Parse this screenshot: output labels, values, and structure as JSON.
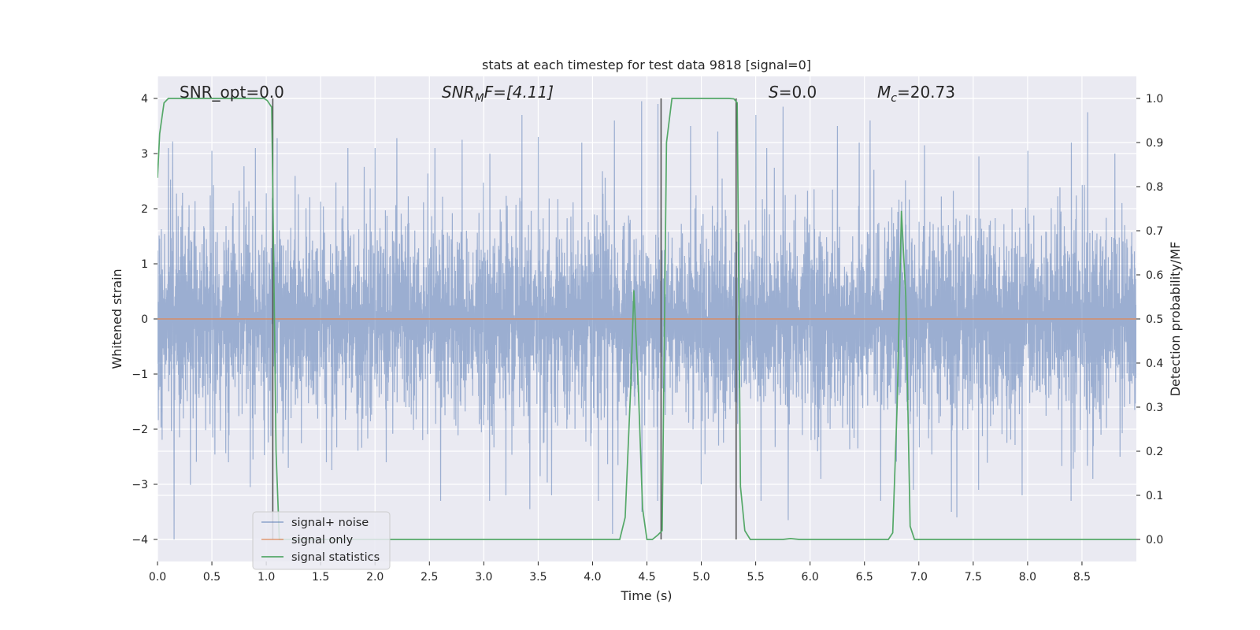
{
  "chart_data": {
    "type": "line",
    "title": "stats at each timestep for test data 9818 [signal=0]",
    "xlabel": "Time (s)",
    "ylabel_left": "Whitened strain",
    "ylabel_right": "Detection probability/MF",
    "xlim": [
      0,
      9.0
    ],
    "ylim_left": [
      -4.4,
      4.4
    ],
    "ylim_right": [
      -0.05,
      1.05
    ],
    "x_ticks": [
      0.0,
      0.5,
      1.0,
      1.5,
      2.0,
      2.5,
      3.0,
      3.5,
      4.0,
      4.5,
      5.0,
      5.5,
      6.0,
      6.5,
      7.0,
      7.5,
      8.0,
      8.5
    ],
    "x_tick_labels": [
      "0.0",
      "0.5",
      "1.0",
      "1.5",
      "2.0",
      "2.5",
      "3.0",
      "3.5",
      "4.0",
      "4.5",
      "5.0",
      "5.5",
      "6.0",
      "6.5",
      "7.0",
      "7.5",
      "8.0",
      "8.5"
    ],
    "y_left_ticks": [
      -4,
      -3,
      -2,
      -1,
      0,
      1,
      2,
      3,
      4
    ],
    "y_left_tick_labels": [
      "−4",
      "−3",
      "−2",
      "−1",
      "0",
      "1",
      "2",
      "3",
      "4"
    ],
    "y_right_ticks": [
      0.0,
      0.1,
      0.2,
      0.3,
      0.4,
      0.5,
      0.6,
      0.7,
      0.8,
      0.9,
      1.0
    ],
    "y_right_tick_labels": [
      "0.0",
      "0.1",
      "0.2",
      "0.3",
      "0.4",
      "0.5",
      "0.6",
      "0.7",
      "0.8",
      "0.9",
      "1.0"
    ],
    "grid": true,
    "legend_position": "lower-left",
    "legend": [
      {
        "label": "signal+ noise",
        "color": "#4c72b0"
      },
      {
        "label": "signal only",
        "color": "#dd8452"
      },
      {
        "label": "signal statistics",
        "color": "#55a868"
      }
    ],
    "annotations": {
      "snr_opt": "SNR_opt=0.0",
      "snr_mf_symbol": "SNR",
      "snr_mf_sub": "M",
      "snr_mf_rest": "F=[4.11]",
      "s_symbol": "S",
      "s_rest": "=0.0",
      "mc_symbol": "M",
      "mc_sub": "c",
      "mc_rest": "=20.73"
    },
    "noise_series": {
      "name": "signal+ noise",
      "color": "#4c72b0",
      "duration_s": 9.0,
      "typical_envelope": 1.6,
      "peaks": [
        {
          "t": 0.1,
          "v": 3.1
        },
        {
          "t": 0.14,
          "v": 3.22
        },
        {
          "t": 0.5,
          "v": 3.05
        },
        {
          "t": 0.9,
          "v": 3.1
        },
        {
          "t": 1.1,
          "v": 3.28
        },
        {
          "t": 1.75,
          "v": 3.1
        },
        {
          "t": 2.0,
          "v": 3.1
        },
        {
          "t": 2.2,
          "v": 3.28
        },
        {
          "t": 2.55,
          "v": 3.1
        },
        {
          "t": 2.8,
          "v": 3.25
        },
        {
          "t": 3.35,
          "v": 3.7
        },
        {
          "t": 3.5,
          "v": 3.3
        },
        {
          "t": 3.9,
          "v": 3.2
        },
        {
          "t": 4.2,
          "v": 3.6
        },
        {
          "t": 4.45,
          "v": 3.95
        },
        {
          "t": 4.6,
          "v": 3.9
        },
        {
          "t": 4.9,
          "v": 3.5
        },
        {
          "t": 5.15,
          "v": 3.4
        },
        {
          "t": 5.5,
          "v": 3.7
        },
        {
          "t": 5.6,
          "v": 3.1
        },
        {
          "t": 5.75,
          "v": 3.85
        },
        {
          "t": 6.25,
          "v": 3.5
        },
        {
          "t": 6.45,
          "v": 3.2
        },
        {
          "t": 6.55,
          "v": 3.6
        },
        {
          "t": 7.05,
          "v": 3.15
        },
        {
          "t": 7.55,
          "v": 2.95
        },
        {
          "t": 8.0,
          "v": 3.05
        },
        {
          "t": 8.4,
          "v": 3.2
        },
        {
          "t": 8.55,
          "v": 3.75
        },
        {
          "t": 8.8,
          "v": 3.0
        }
      ],
      "troughs": [
        {
          "t": 0.15,
          "v": -4.0
        },
        {
          "t": 0.65,
          "v": -2.6
        },
        {
          "t": 0.85,
          "v": -3.05
        },
        {
          "t": 1.2,
          "v": -2.7
        },
        {
          "t": 1.55,
          "v": -2.6
        },
        {
          "t": 2.1,
          "v": -2.6
        },
        {
          "t": 2.6,
          "v": -3.3
        },
        {
          "t": 3.05,
          "v": -3.3
        },
        {
          "t": 3.2,
          "v": -3.2
        },
        {
          "t": 3.42,
          "v": -3.45
        },
        {
          "t": 3.62,
          "v": -3.2
        },
        {
          "t": 4.05,
          "v": -3.3
        },
        {
          "t": 4.18,
          "v": -3.9
        },
        {
          "t": 4.45,
          "v": -3.5
        },
        {
          "t": 4.6,
          "v": -3.3
        },
        {
          "t": 5.0,
          "v": -3.0
        },
        {
          "t": 5.55,
          "v": -3.3
        },
        {
          "t": 5.8,
          "v": -3.65
        },
        {
          "t": 6.1,
          "v": -2.9
        },
        {
          "t": 6.65,
          "v": -3.3
        },
        {
          "t": 6.95,
          "v": -3.1
        },
        {
          "t": 7.3,
          "v": -3.5
        },
        {
          "t": 7.35,
          "v": -3.6
        },
        {
          "t": 7.55,
          "v": -3.1
        },
        {
          "t": 7.95,
          "v": -3.2
        },
        {
          "t": 8.4,
          "v": -3.3
        },
        {
          "t": 8.6,
          "v": -2.9
        },
        {
          "t": 8.85,
          "v": -2.5
        }
      ]
    },
    "signal_only": {
      "name": "signal only",
      "color": "#dd8452",
      "x": [
        0.0,
        9.0
      ],
      "y": [
        0.0,
        0.0
      ]
    },
    "statistics_series": {
      "name": "signal statistics",
      "color": "#55a868",
      "x": [
        0.0,
        0.02,
        0.06,
        0.1,
        0.2,
        0.5,
        0.8,
        0.98,
        1.01,
        1.05,
        1.07,
        1.09,
        1.12,
        1.15,
        1.2,
        1.5,
        2.0,
        3.0,
        4.0,
        4.25,
        4.3,
        4.35,
        4.38,
        4.42,
        4.46,
        4.5,
        4.55,
        4.6,
        4.64,
        4.68,
        4.73,
        5.0,
        5.25,
        5.3,
        5.33,
        5.36,
        5.4,
        5.45,
        5.5,
        5.75,
        5.82,
        5.9,
        6.5,
        6.72,
        6.76,
        6.8,
        6.84,
        6.88,
        6.92,
        6.96,
        7.5,
        8.0,
        9.0
      ],
      "y": [
        0.82,
        0.92,
        0.99,
        1.0,
        1.0,
        1.0,
        1.0,
        1.0,
        0.995,
        0.98,
        0.6,
        0.2,
        0.0,
        0.0,
        0.0,
        0.0,
        0.0,
        0.0,
        0.0,
        0.0,
        0.05,
        0.34,
        0.565,
        0.35,
        0.07,
        0.0,
        0.0,
        0.01,
        0.02,
        0.9,
        1.0,
        1.0,
        1.0,
        0.999,
        0.99,
        0.12,
        0.02,
        0.0,
        0.0,
        0.0,
        0.002,
        0.0,
        0.0,
        0.0,
        0.015,
        0.3,
        0.745,
        0.55,
        0.03,
        0.0,
        0.0,
        0.0,
        0.0
      ]
    },
    "vertical_markers": [
      1.06,
      4.63,
      5.32
    ]
  }
}
